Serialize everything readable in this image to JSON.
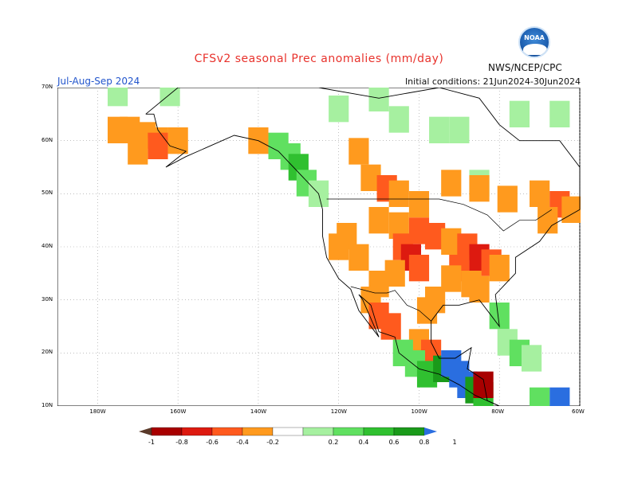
{
  "header": {
    "title": "CFSv2 seasonal Prec anomalies (mm/day)",
    "agency": "NWS/NCEP/CPC",
    "period": "Jul-Aug-Sep 2024",
    "initial_conditions": "Initial conditions: 21Jun2024-30Jun2024",
    "logo_text": "NOAA"
  },
  "chart_data": {
    "type": "heatmap",
    "title": "CFSv2 seasonal Prec anomalies (mm/day)",
    "subtitle": "Jul-Aug-Sep 2024",
    "lon_range": [
      -190,
      -60
    ],
    "lat_range": [
      10,
      70
    ],
    "grid": true,
    "x_ticks": [
      "180W",
      "160W",
      "140W",
      "120W",
      "100W",
      "80W",
      "60W"
    ],
    "y_ticks": [
      "10N",
      "20N",
      "30N",
      "40N",
      "50N",
      "60N",
      "70N"
    ],
    "colorbar": {
      "labels": [
        "-1",
        "-0.8",
        "-0.6",
        "-0.4",
        "-0.2",
        "0.2",
        "0.4",
        "0.6",
        "0.8",
        "1"
      ],
      "colors": [
        "#5a3a2a",
        "#a80000",
        "#dd1a10",
        "#ff5a1e",
        "#ff9a1e",
        "#ffffff",
        "#a6f0a0",
        "#60e060",
        "#30c030",
        "#1a9a1a",
        "#2a6ee0"
      ]
    },
    "cells": [
      {
        "lon": -175,
        "lat": 62,
        "v": -0.3
      },
      {
        "lon": -172,
        "lat": 62,
        "v": -0.3
      },
      {
        "lon": -168,
        "lat": 61,
        "v": -0.3
      },
      {
        "lon": -165,
        "lat": 60,
        "v": -0.3
      },
      {
        "lon": -160,
        "lat": 60,
        "v": -0.3
      },
      {
        "lon": -165,
        "lat": 59,
        "v": -0.5
      },
      {
        "lon": -170,
        "lat": 58,
        "v": -0.3
      },
      {
        "lon": -175,
        "lat": 69,
        "v": 0.3
      },
      {
        "lon": -162,
        "lat": 69,
        "v": 0.3
      },
      {
        "lon": -120,
        "lat": 66,
        "v": 0.3
      },
      {
        "lon": -110,
        "lat": 68,
        "v": 0.3
      },
      {
        "lon": -105,
        "lat": 64,
        "v": 0.3
      },
      {
        "lon": -95,
        "lat": 62,
        "v": 0.3
      },
      {
        "lon": -90,
        "lat": 62,
        "v": 0.3
      },
      {
        "lon": -85,
        "lat": 52,
        "v": 0.3
      },
      {
        "lon": -75,
        "lat": 65,
        "v": 0.3
      },
      {
        "lon": -65,
        "lat": 65,
        "v": 0.3
      },
      {
        "lon": -140,
        "lat": 60,
        "v": -0.3
      },
      {
        "lon": -135,
        "lat": 59,
        "v": 0.5
      },
      {
        "lon": -132,
        "lat": 57,
        "v": 0.4
      },
      {
        "lon": -130,
        "lat": 55,
        "v": 0.6
      },
      {
        "lon": -128,
        "lat": 52,
        "v": 0.4
      },
      {
        "lon": -125,
        "lat": 50,
        "v": 0.3
      },
      {
        "lon": -115,
        "lat": 58,
        "v": -0.3
      },
      {
        "lon": -112,
        "lat": 53,
        "v": -0.3
      },
      {
        "lon": -108,
        "lat": 51,
        "v": -0.5
      },
      {
        "lon": -105,
        "lat": 50,
        "v": -0.3
      },
      {
        "lon": -100,
        "lat": 48,
        "v": -0.3
      },
      {
        "lon": -92,
        "lat": 52,
        "v": -0.3
      },
      {
        "lon": -85,
        "lat": 51,
        "v": -0.3
      },
      {
        "lon": -78,
        "lat": 49,
        "v": -0.3
      },
      {
        "lon": -70,
        "lat": 50,
        "v": -0.3
      },
      {
        "lon": -65,
        "lat": 48,
        "v": -0.5
      },
      {
        "lon": -62,
        "lat": 47,
        "v": -0.3
      },
      {
        "lon": -68,
        "lat": 45,
        "v": -0.3
      },
      {
        "lon": -110,
        "lat": 45,
        "v": -0.3
      },
      {
        "lon": -105,
        "lat": 44,
        "v": -0.3
      },
      {
        "lon": -100,
        "lat": 43,
        "v": -0.5
      },
      {
        "lon": -96,
        "lat": 42,
        "v": -0.5
      },
      {
        "lon": -92,
        "lat": 41,
        "v": -0.3
      },
      {
        "lon": -88,
        "lat": 40,
        "v": -0.5
      },
      {
        "lon": -85,
        "lat": 38,
        "v": -0.7
      },
      {
        "lon": -82,
        "lat": 37,
        "v": -0.5
      },
      {
        "lon": -80,
        "lat": 36,
        "v": -0.3
      },
      {
        "lon": -90,
        "lat": 36,
        "v": -0.5
      },
      {
        "lon": -92,
        "lat": 34,
        "v": -0.3
      },
      {
        "lon": -87,
        "lat": 33,
        "v": -0.3
      },
      {
        "lon": -85,
        "lat": 32,
        "v": -0.3
      },
      {
        "lon": -104,
        "lat": 40,
        "v": -0.5
      },
      {
        "lon": -102,
        "lat": 38,
        "v": -0.7
      },
      {
        "lon": -100,
        "lat": 36,
        "v": -0.5
      },
      {
        "lon": -106,
        "lat": 35,
        "v": -0.3
      },
      {
        "lon": -110,
        "lat": 33,
        "v": -0.3
      },
      {
        "lon": -112,
        "lat": 30,
        "v": -0.3
      },
      {
        "lon": -110,
        "lat": 27,
        "v": -0.5
      },
      {
        "lon": -107,
        "lat": 25,
        "v": -0.5
      },
      {
        "lon": -98,
        "lat": 28,
        "v": -0.3
      },
      {
        "lon": -96,
        "lat": 30,
        "v": -0.3
      },
      {
        "lon": -118,
        "lat": 42,
        "v": -0.3
      },
      {
        "lon": -120,
        "lat": 40,
        "v": -0.3
      },
      {
        "lon": -115,
        "lat": 38,
        "v": -0.3
      },
      {
        "lon": -100,
        "lat": 22,
        "v": -0.3
      },
      {
        "lon": -97,
        "lat": 20,
        "v": -0.5
      },
      {
        "lon": -104,
        "lat": 20,
        "v": 0.4
      },
      {
        "lon": -101,
        "lat": 18,
        "v": 0.5
      },
      {
        "lon": -98,
        "lat": 16,
        "v": 0.7
      },
      {
        "lon": -94,
        "lat": 17,
        "v": 0.8
      },
      {
        "lon": -92,
        "lat": 18,
        "v": 1.1
      },
      {
        "lon": -90,
        "lat": 16,
        "v": 1.1
      },
      {
        "lon": -88,
        "lat": 14,
        "v": 1.1
      },
      {
        "lon": -86,
        "lat": 13,
        "v": 0.8
      },
      {
        "lon": -84,
        "lat": 12,
        "v": 0.6
      },
      {
        "lon": -84,
        "lat": 14,
        "v": -0.9
      },
      {
        "lon": -80,
        "lat": 27,
        "v": 0.4
      },
      {
        "lon": -78,
        "lat": 22,
        "v": 0.3
      },
      {
        "lon": -75,
        "lat": 20,
        "v": 0.5
      },
      {
        "lon": -72,
        "lat": 19,
        "v": 0.3
      },
      {
        "lon": -65,
        "lat": 11,
        "v": 1.1
      },
      {
        "lon": -70,
        "lat": 11,
        "v": 0.4
      }
    ]
  }
}
